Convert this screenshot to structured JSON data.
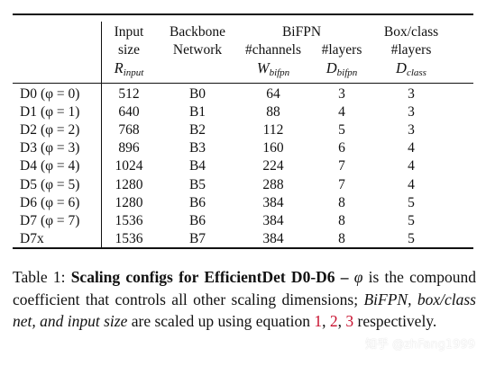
{
  "table": {
    "columns": [
      {
        "lines": [
          "Input",
          "size"
        ],
        "symbol": "R",
        "sub": "input"
      },
      {
        "lines": [
          "Backbone",
          "Network"
        ],
        "symbol": "",
        "sub": ""
      },
      {
        "lines": [
          "#channels"
        ],
        "symbol": "W",
        "sub": "bifpn"
      },
      {
        "lines": [
          "#layers"
        ],
        "symbol": "D",
        "sub": "bifpn"
      },
      {
        "lines": [
          "#layers"
        ],
        "symbol": "D",
        "sub": "class"
      }
    ],
    "group_headers": {
      "bifpn": "BiFPN",
      "boxclass": "Box/class"
    },
    "rows": [
      {
        "config": "D0",
        "phi_label": "(φ = 0)",
        "input": "512",
        "backbone": "B0",
        "channels": "64",
        "bifpn_layers": "3",
        "class_layers": "3"
      },
      {
        "config": "D1",
        "phi_label": "(φ = 1)",
        "input": "640",
        "backbone": "B1",
        "channels": "88",
        "bifpn_layers": "4",
        "class_layers": "3"
      },
      {
        "config": "D2",
        "phi_label": "(φ = 2)",
        "input": "768",
        "backbone": "B2",
        "channels": "112",
        "bifpn_layers": "5",
        "class_layers": "3"
      },
      {
        "config": "D3",
        "phi_label": "(φ = 3)",
        "input": "896",
        "backbone": "B3",
        "channels": "160",
        "bifpn_layers": "6",
        "class_layers": "4"
      },
      {
        "config": "D4",
        "phi_label": "(φ = 4)",
        "input": "1024",
        "backbone": "B4",
        "channels": "224",
        "bifpn_layers": "7",
        "class_layers": "4"
      },
      {
        "config": "D5",
        "phi_label": "(φ = 5)",
        "input": "1280",
        "backbone": "B5",
        "channels": "288",
        "bifpn_layers": "7",
        "class_layers": "4"
      },
      {
        "config": "D6",
        "phi_label": "(φ = 6)",
        "input": "1280",
        "backbone": "B6",
        "channels": "384",
        "bifpn_layers": "8",
        "class_layers": "5"
      },
      {
        "config": "D7",
        "phi_label": "(φ = 7)",
        "input": "1536",
        "backbone": "B6",
        "channels": "384",
        "bifpn_layers": "8",
        "class_layers": "5"
      },
      {
        "config": "D7x",
        "phi_label": "",
        "input": "1536",
        "backbone": "B7",
        "channels": "384",
        "bifpn_layers": "8",
        "class_layers": "5"
      }
    ]
  },
  "caption": {
    "label": "Table 1:",
    "bold_title": "Scaling configs for EfficientDet D0-D6 –",
    "phi": "φ",
    "text1": " is the compound coefficient that controls all other scaling dimensions; ",
    "italic_part": "BiFPN, box/class net, and input size",
    "text2": " are scaled up using equation ",
    "refs": [
      "1",
      "2",
      "3"
    ],
    "text3": " respectively."
  },
  "watermark": "知乎 @zhFang1999",
  "colors": {
    "text": "#111111",
    "reference": "#c8102e"
  }
}
